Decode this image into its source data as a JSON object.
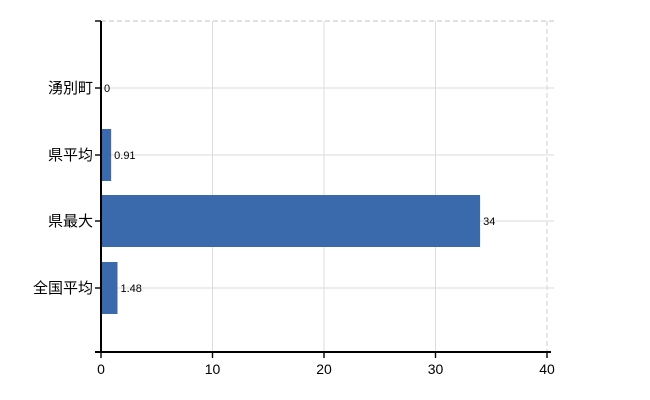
{
  "chart_data": {
    "type": "bar",
    "orientation": "horizontal",
    "title": "",
    "xlabel": "",
    "ylabel": "",
    "categories": [
      "湧別町",
      "県平均",
      "県最大",
      "全国平均"
    ],
    "values": [
      0,
      0.91,
      34,
      1.48
    ],
    "value_labels": [
      "0",
      "0.91",
      "34",
      "1.48"
    ],
    "x_tick_labels": [
      "0",
      "10",
      "20",
      "30",
      "40"
    ],
    "x_tick_values": [
      0,
      10,
      20,
      30,
      40
    ],
    "xlim": [
      0,
      40.6
    ],
    "grid": true,
    "legend_position": "none",
    "colors": {
      "bar": "#3a69ac",
      "grid_horizontal": "#d9ded9",
      "grid_vertical": "#dcdcdc",
      "frame_dashed": "#cfcfcf",
      "axis": "#000000",
      "category_text": "#000000",
      "tick_text": "#000000",
      "value_text": "#1a1a1a"
    }
  }
}
